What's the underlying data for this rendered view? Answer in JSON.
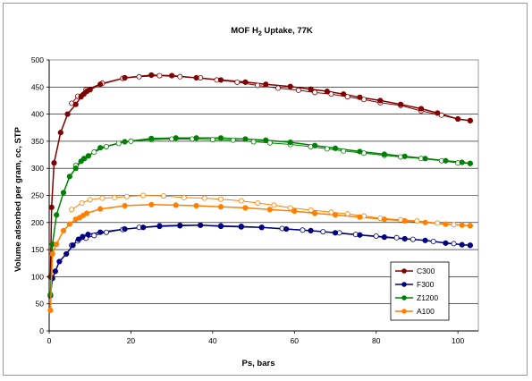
{
  "chart_data": {
    "type": "line",
    "title": "MOF H",
    "title_sub": "2",
    "title_rest": " Uptake, 77K",
    "xlabel": "Ps, bars",
    "ylabel": "Volume adsorbed per gram, cc, STP",
    "xlim": [
      0,
      105
    ],
    "ylim": [
      0,
      500
    ],
    "xticks": [
      0,
      20,
      40,
      60,
      80,
      100
    ],
    "yticks": [
      0,
      50,
      100,
      150,
      200,
      250,
      300,
      350,
      400,
      450,
      500
    ],
    "grid": "horizontal",
    "legend_position": "bottom-right",
    "series": [
      {
        "name": "C300",
        "color": "#800000",
        "adsorption": [
          [
            0.3,
            100
          ],
          [
            0.6,
            228
          ],
          [
            1.2,
            310
          ],
          [
            2.8,
            366
          ],
          [
            4.5,
            400
          ],
          [
            6.5,
            418
          ],
          [
            7.8,
            432
          ],
          [
            8.5,
            437
          ],
          [
            9.2,
            442
          ],
          [
            10,
            445
          ],
          [
            12.5,
            455
          ],
          [
            18.5,
            467
          ],
          [
            25,
            472
          ],
          [
            30,
            471
          ],
          [
            36,
            467
          ],
          [
            42,
            463
          ],
          [
            48,
            459
          ],
          [
            53,
            455
          ],
          [
            59,
            451
          ],
          [
            64,
            446
          ],
          [
            68,
            442
          ],
          [
            72,
            437
          ],
          [
            76,
            431
          ],
          [
            81,
            425
          ],
          [
            86,
            418
          ],
          [
            91,
            410
          ],
          [
            95,
            402
          ],
          [
            100,
            391
          ],
          [
            103,
            388
          ]
        ],
        "desorption": [
          [
            103,
            388
          ],
          [
            100,
            391
          ],
          [
            96,
            398
          ],
          [
            91,
            406
          ],
          [
            86,
            416
          ],
          [
            81,
            421
          ],
          [
            77,
            427
          ],
          [
            73,
            432
          ],
          [
            69,
            437
          ],
          [
            65,
            440
          ],
          [
            61,
            444
          ],
          [
            56,
            448
          ],
          [
            51,
            453
          ],
          [
            46,
            459
          ],
          [
            41,
            463
          ],
          [
            37,
            467
          ],
          [
            32,
            469
          ],
          [
            27,
            471
          ],
          [
            22,
            469
          ],
          [
            18,
            466
          ],
          [
            13,
            457
          ],
          [
            9,
            445
          ],
          [
            7,
            433
          ],
          [
            5.5,
            420
          ]
        ]
      },
      {
        "name": "F300",
        "color": "#000080",
        "adsorption": [
          [
            0.3,
            65
          ],
          [
            0.8,
            97
          ],
          [
            1.5,
            110
          ],
          [
            2.5,
            128
          ],
          [
            4.2,
            142
          ],
          [
            5.8,
            158
          ],
          [
            7.2,
            169
          ],
          [
            8.2,
            174
          ],
          [
            9.5,
            178
          ],
          [
            12.5,
            182
          ],
          [
            18.5,
            188
          ],
          [
            23,
            191
          ],
          [
            27,
            193
          ],
          [
            32,
            194
          ],
          [
            37,
            195
          ],
          [
            42,
            193
          ],
          [
            47,
            192
          ],
          [
            52,
            191
          ],
          [
            58,
            188
          ],
          [
            64,
            185
          ],
          [
            70,
            181
          ],
          [
            76,
            177
          ],
          [
            82,
            173
          ],
          [
            87,
            170
          ],
          [
            92,
            167
          ],
          [
            97,
            162
          ],
          [
            101,
            159
          ],
          [
            103,
            158
          ]
        ],
        "desorption": [
          [
            103,
            158
          ],
          [
            99,
            161
          ],
          [
            94,
            165
          ],
          [
            89,
            169
          ],
          [
            85,
            172
          ],
          [
            80,
            175
          ],
          [
            75,
            178
          ],
          [
            71,
            181
          ],
          [
            67,
            183
          ],
          [
            62,
            186
          ],
          [
            57,
            189
          ],
          [
            52,
            191
          ],
          [
            47,
            193
          ],
          [
            42,
            194
          ],
          [
            37,
            195
          ],
          [
            32,
            195
          ],
          [
            27,
            194
          ],
          [
            22,
            191
          ],
          [
            18,
            187
          ],
          [
            14,
            182
          ],
          [
            11,
            176
          ],
          [
            9,
            171
          ],
          [
            7,
            166
          ],
          [
            5.5,
            158
          ]
        ]
      },
      {
        "name": "Z1200",
        "color": "#008000",
        "adsorption": [
          [
            0.3,
            67
          ],
          [
            0.8,
            160
          ],
          [
            1.8,
            214
          ],
          [
            3.5,
            255
          ],
          [
            5,
            285
          ],
          [
            6.5,
            300
          ],
          [
            7.8,
            313
          ],
          [
            8.6,
            318
          ],
          [
            9.6,
            323
          ],
          [
            12.5,
            338
          ],
          [
            18.5,
            349
          ],
          [
            25,
            355
          ],
          [
            31,
            356
          ],
          [
            36,
            356
          ],
          [
            42,
            356
          ],
          [
            48,
            354
          ],
          [
            53,
            352
          ],
          [
            59,
            348
          ],
          [
            65,
            342
          ],
          [
            70,
            337
          ],
          [
            76,
            331
          ],
          [
            82,
            326
          ],
          [
            87,
            322
          ],
          [
            92,
            318
          ],
          [
            97,
            314
          ],
          [
            101,
            311
          ],
          [
            103,
            309
          ]
        ],
        "desorption": [
          [
            103,
            309
          ],
          [
            100,
            310
          ],
          [
            96,
            314
          ],
          [
            91,
            318
          ],
          [
            86,
            321
          ],
          [
            82,
            324
          ],
          [
            77,
            328
          ],
          [
            72,
            332
          ],
          [
            68,
            336
          ],
          [
            64,
            340
          ],
          [
            59,
            344
          ],
          [
            54,
            347
          ],
          [
            50,
            349
          ],
          [
            45,
            352
          ],
          [
            40,
            353
          ],
          [
            35,
            354
          ],
          [
            30,
            354
          ],
          [
            25,
            353
          ],
          [
            20,
            350
          ],
          [
            17,
            346
          ],
          [
            14,
            340
          ],
          [
            11,
            330
          ],
          [
            8.5,
            318
          ],
          [
            6.5,
            305
          ]
        ]
      },
      {
        "name": "A100",
        "color": "#ff8000",
        "adsorption": [
          [
            0.3,
            38
          ],
          [
            0.8,
            142
          ],
          [
            1.8,
            160
          ],
          [
            3.5,
            185
          ],
          [
            5,
            197
          ],
          [
            6.5,
            206
          ],
          [
            7.5,
            209
          ],
          [
            8.3,
            213
          ],
          [
            9.2,
            217
          ],
          [
            12.5,
            225
          ],
          [
            18.5,
            231
          ],
          [
            25,
            233
          ],
          [
            31,
            232
          ],
          [
            36,
            231
          ],
          [
            42,
            229
          ],
          [
            48,
            227
          ],
          [
            54,
            224
          ],
          [
            60,
            221
          ],
          [
            65,
            217
          ],
          [
            70,
            214
          ],
          [
            76,
            210
          ],
          [
            82,
            206
          ],
          [
            87,
            203
          ],
          [
            92,
            200
          ],
          [
            97,
            197
          ],
          [
            101,
            195
          ],
          [
            103,
            194
          ]
        ],
        "desorption": [
          [
            103,
            194
          ],
          [
            99,
            196
          ],
          [
            95,
            199
          ],
          [
            90,
            203
          ],
          [
            86,
            205
          ],
          [
            81,
            208
          ],
          [
            77,
            212
          ],
          [
            73,
            216
          ],
          [
            69,
            219
          ],
          [
            64,
            223
          ],
          [
            59,
            227
          ],
          [
            55,
            232
          ],
          [
            51,
            236
          ],
          [
            47,
            240
          ],
          [
            42,
            243
          ],
          [
            38,
            245
          ],
          [
            33,
            246
          ],
          [
            28,
            249
          ],
          [
            23,
            250
          ],
          [
            19,
            248
          ],
          [
            16,
            246
          ],
          [
            13,
            245
          ],
          [
            10,
            242
          ],
          [
            8,
            236
          ],
          [
            5.5,
            224
          ]
        ]
      }
    ]
  }
}
